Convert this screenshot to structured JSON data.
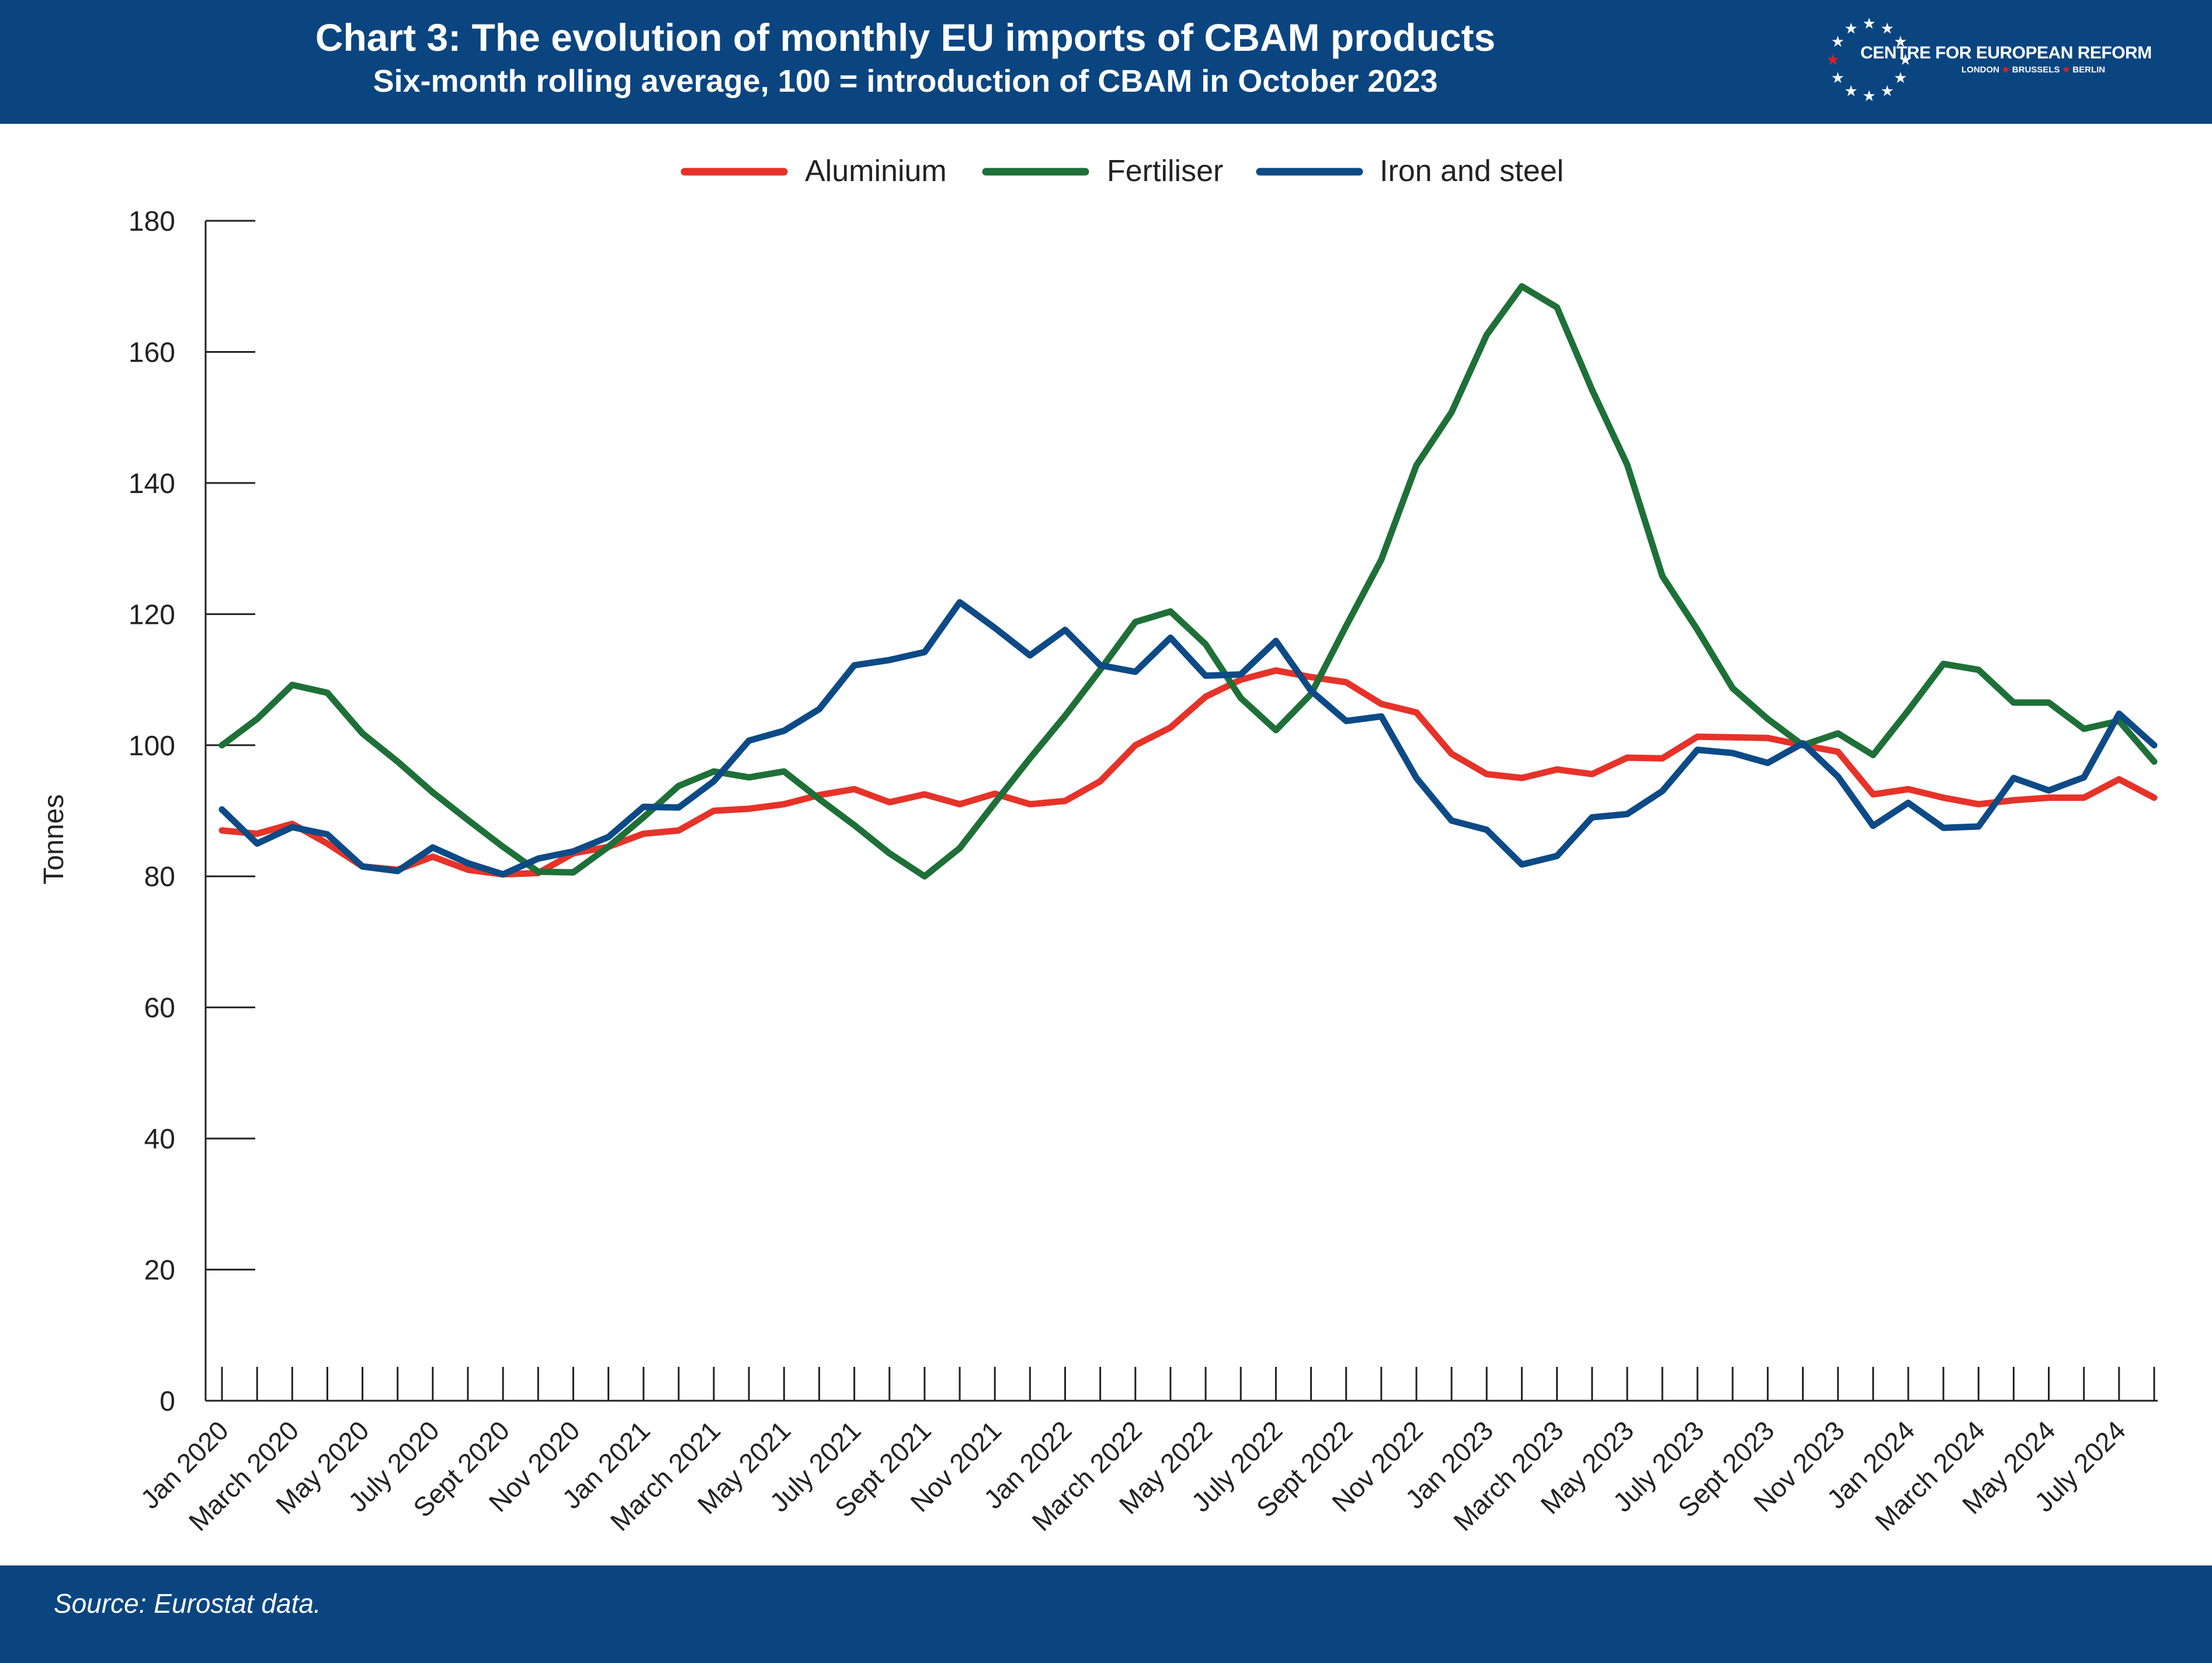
{
  "header": {
    "title": "Chart 3: The evolution of monthly EU imports of CBAM products",
    "subtitle": "Six-month rolling average, 100 = introduction of CBAM in October 2023"
  },
  "logo": {
    "name": "CENTRE FOR EUROPEAN REFORM",
    "cities": [
      "LONDON",
      "BRUSSELS",
      "BERLIN"
    ]
  },
  "footer": {
    "source": "Source: Eurostat data."
  },
  "colors": {
    "header_bg": "#0a4580",
    "aluminium": "#e63329",
    "fertiliser": "#1e7038",
    "iron_and_steel": "#0d4a86"
  },
  "chart_data": {
    "type": "line",
    "ylabel": "Tonnes",
    "xlabel": "",
    "ylim": [
      0,
      180
    ],
    "yticks": [
      0,
      20,
      40,
      60,
      80,
      100,
      120,
      140,
      160,
      180
    ],
    "grid": false,
    "legend_position": "top",
    "x": [
      "Jan 2020",
      "Feb 2020",
      "March 2020",
      "April 2020",
      "May 2020",
      "June 2020",
      "July 2020",
      "Aug 2020",
      "Sept 2020",
      "Oct 2020",
      "Nov 2020",
      "Dec 2020",
      "Jan 2021",
      "Feb 2021",
      "March 2021",
      "April 2021",
      "May 2021",
      "June 2021",
      "July 2021",
      "Aug 2021",
      "Sept 2021",
      "Oct 2021",
      "Nov 2021",
      "Dec 2021",
      "Jan 2022",
      "Feb 2022",
      "March 2022",
      "April 2022",
      "May 2022",
      "June 2022",
      "July 2022",
      "Aug 2022",
      "Sept 2022",
      "Oct 2022",
      "Nov 2022",
      "Dec 2022",
      "Jan 2023",
      "Feb 2023",
      "March 2023",
      "April 2023",
      "May 2023",
      "June 2023",
      "July 2023",
      "Aug 2023",
      "Sept 2023",
      "Oct 2023",
      "Nov 2023",
      "Dec 2023",
      "Jan 2024",
      "Feb 2024",
      "March 2024",
      "April 2024",
      "May 2024",
      "June 2024",
      "July 2024",
      "Aug 2024"
    ],
    "tick_labels": [
      "Jan 2020",
      "March 2020",
      "May 2020",
      "July 2020",
      "Sept 2020",
      "Nov 2020",
      "Jan 2021",
      "March 2021",
      "May 2021",
      "July 2021",
      "Sept 2021",
      "Nov 2021",
      "Jan 2022",
      "March 2022",
      "May 2022",
      "July 2022",
      "Sept 2022",
      "Nov 2022",
      "Jan 2023",
      "March 2023",
      "May 2023",
      "July 2023",
      "Sept 2023",
      "Nov 2023",
      "Jan 2024",
      "March 2024",
      "May 2024",
      "July 2024"
    ],
    "series": [
      {
        "name": "Aluminium",
        "color": "#e63329",
        "values": [
          87,
          86.5,
          88,
          85,
          81.5,
          81,
          83,
          81,
          80.3,
          80.5,
          83.5,
          84.5,
          86.5,
          87,
          90,
          90.3,
          91,
          92.4,
          93.3,
          91.3,
          92.5,
          91,
          92.6,
          91,
          91.5,
          94.5,
          100,
          102.7,
          107.4,
          110,
          111.4,
          110.4,
          109.6,
          106.3,
          105,
          98.7,
          95.6,
          95,
          96.3,
          95.6,
          98.1,
          98,
          101.3,
          101.2,
          101.1,
          100,
          99,
          92.5,
          93.3,
          92,
          91,
          91.6,
          92,
          92,
          94.8,
          92
        ]
      },
      {
        "name": "Fertiliser",
        "color": "#1e7038",
        "values": [
          100,
          104,
          109.2,
          108,
          101.8,
          97.5,
          92.8,
          88.6,
          84.5,
          80.7,
          80.6,
          84.5,
          89,
          93.8,
          96,
          95.1,
          96,
          91.8,
          87.8,
          83.5,
          80,
          84.3,
          91.2,
          98,
          104.5,
          111.5,
          118.8,
          120.4,
          115.4,
          107.2,
          102.3,
          107.8,
          118.2,
          128.3,
          142.7,
          150.8,
          162.6,
          170,
          166.8,
          154.2,
          142.8,
          125.8,
          117.6,
          108.7,
          104,
          100,
          101.8,
          98.5,
          105.3,
          112.4,
          111.5,
          106.5,
          106.5,
          102.5,
          103.7,
          97.5
        ]
      },
      {
        "name": "Iron and steel",
        "color": "#0d4a86",
        "values": [
          90.2,
          85,
          87.5,
          86.4,
          81.5,
          80.8,
          84.4,
          82,
          80.3,
          82.7,
          83.8,
          86,
          90.6,
          90.5,
          94.5,
          100.7,
          102.2,
          105.5,
          112.2,
          113,
          114.2,
          121.8,
          117.9,
          113.7,
          117.6,
          112.2,
          111.2,
          116.4,
          110.6,
          110.8,
          115.9,
          108.3,
          103.7,
          104.4,
          95,
          88.5,
          87.1,
          81.8,
          83.1,
          89,
          89.5,
          93,
          99.3,
          98.8,
          97.3,
          100.3,
          95.2,
          87.7,
          91.2,
          87.4,
          87.6,
          95,
          93.1,
          95.1,
          104.8,
          100
        ]
      }
    ]
  }
}
